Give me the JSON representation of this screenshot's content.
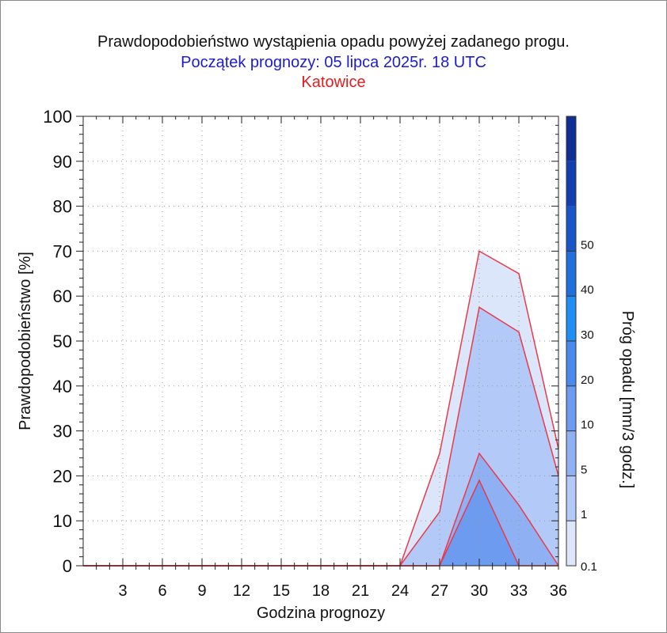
{
  "header": {
    "title": "Prawdopodobieństwo wystąpienia opadu powyżej zadanego progu.",
    "subtitle": "Początek prognozy: 05 lipca 2025r. 18 UTC",
    "location": "Katowice"
  },
  "colors": {
    "title": "#111111",
    "subtitle": "#1c1ccc",
    "location": "#e21d1d",
    "outline": "#e83a4a"
  },
  "chart_data": {
    "type": "area",
    "title": "Prawdopodobieństwo wystąpienia opadu powyżej zadanego progu.",
    "xlabel": "Godzina prognozy",
    "ylabel": "Prawdopodobieństwo [%]",
    "xlim": [
      0,
      36
    ],
    "ylim": [
      0,
      100
    ],
    "x_ticks": [
      3,
      6,
      9,
      12,
      15,
      18,
      21,
      24,
      27,
      30,
      33,
      36
    ],
    "y_ticks": [
      0,
      10,
      20,
      30,
      40,
      50,
      60,
      70,
      80,
      90,
      100
    ],
    "grid": true,
    "x": [
      0,
      3,
      6,
      9,
      12,
      15,
      18,
      21,
      24,
      27,
      30,
      33,
      36
    ],
    "series": [
      {
        "name": "0.1",
        "color": "#dce6fb",
        "values": [
          0,
          0,
          0,
          0,
          0,
          0,
          0,
          0,
          0,
          25,
          70,
          65,
          26
        ]
      },
      {
        "name": "1",
        "color": "#b3c9f7",
        "values": [
          0,
          0,
          0,
          0,
          0,
          0,
          0,
          0,
          0,
          12,
          57.5,
          52,
          20
        ]
      },
      {
        "name": "5",
        "color": "#8fb1f4",
        "values": [
          0,
          0,
          0,
          0,
          0,
          0,
          0,
          0,
          0,
          0,
          25,
          13.5,
          0
        ]
      },
      {
        "name": "10",
        "color": "#6d9bf0",
        "values": [
          0,
          0,
          0,
          0,
          0,
          0,
          0,
          0,
          0,
          0,
          19,
          0,
          0
        ]
      }
    ],
    "colorbar": {
      "label": "Próg opadu [mm/3 godz.]",
      "labels": [
        "0.1",
        "1",
        "5",
        "10",
        "20",
        "30",
        "40",
        "50"
      ],
      "colors": [
        "#dce6fb",
        "#b3c9f7",
        "#8fb1f4",
        "#6d9bf0",
        "#4a8aee",
        "#1f8ef5",
        "#1f6fdd",
        "#1855c8",
        "#133fae",
        "#102f96"
      ]
    }
  }
}
